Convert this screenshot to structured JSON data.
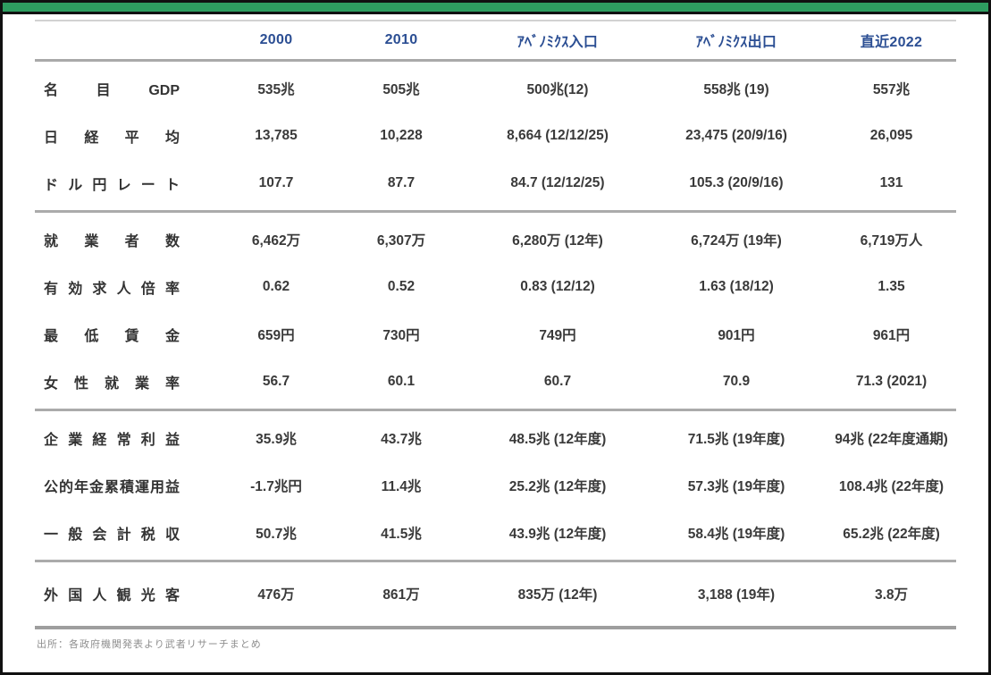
{
  "theme": {
    "title_bar_color": "#2e9d60",
    "header_text_color": "#2b4e93",
    "body_text_color": "#3a3a3a",
    "separator_color": "#ababab",
    "footer_text_color": "#8f8f8f"
  },
  "table": {
    "columns": [
      "2000",
      "2010",
      "ｱﾍﾞﾉﾐｸｽ入口",
      "ｱﾍﾞﾉﾐｸｽ出口",
      "直近2022"
    ],
    "sections": [
      {
        "rows": [
          {
            "label": "名目GDP",
            "values": [
              "535兆",
              "505兆",
              "500兆(12)",
              "558兆 (19)",
              "557兆"
            ]
          },
          {
            "label": "日経平均",
            "values": [
              "13,785",
              "10,228",
              "8,664 (12/12/25)",
              "23,475 (20/9/16)",
              "26,095"
            ]
          },
          {
            "label": "ドル円レート",
            "values": [
              "107.7",
              "87.7",
              "84.7 (12/12/25)",
              "105.3 (20/9/16)",
              "131"
            ]
          }
        ]
      },
      {
        "rows": [
          {
            "label": "就業者数",
            "values": [
              "6,462万",
              "6,307万",
              "6,280万 (12年)",
              "6,724万 (19年)",
              "6,719万人"
            ]
          },
          {
            "label": "有効求人倍率",
            "values": [
              "0.62",
              "0.52",
              "0.83 (12/12)",
              "1.63 (18/12)",
              "1.35"
            ]
          },
          {
            "label": "最低賃金",
            "values": [
              "659円",
              "730円",
              "749円",
              "901円",
              "961円"
            ]
          },
          {
            "label": "女性就業率",
            "values": [
              "56.7",
              "60.1",
              "60.7",
              "70.9",
              "71.3 (2021)"
            ]
          }
        ]
      },
      {
        "rows": [
          {
            "label": "企業経常利益",
            "values": [
              "35.9兆",
              "43.7兆",
              "48.5兆 (12年度)",
              "71.5兆 (19年度)",
              "94兆 (22年度通期)"
            ]
          },
          {
            "label": "公的年金累積運用益",
            "values": [
              "-1.7兆円",
              "11.4兆",
              "25.2兆 (12年度)",
              "57.3兆 (19年度)",
              "108.4兆 (22年度)"
            ]
          },
          {
            "label": "一般会計税収",
            "values": [
              "50.7兆",
              "41.5兆",
              "43.9兆 (12年度)",
              "58.4兆 (19年度)",
              "65.2兆 (22年度)"
            ]
          }
        ]
      },
      {
        "rows": [
          {
            "label": "外国人観光客",
            "values": [
              "476万",
              "861万",
              "835万 (12年)",
              "3,188 (19年)",
              "3.8万"
            ]
          }
        ]
      }
    ]
  },
  "footer": {
    "source": "出所：各政府機関発表より武者リサーチまとめ"
  }
}
